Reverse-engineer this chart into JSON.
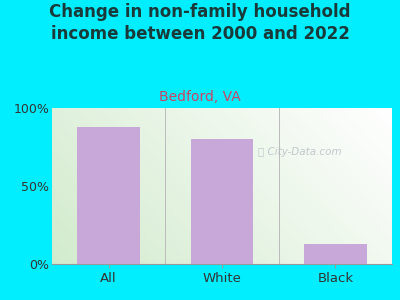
{
  "title": "Change in non-family household\nincome between 2000 and 2022",
  "subtitle": "Bedford, VA",
  "categories": [
    "All",
    "White",
    "Black"
  ],
  "values": [
    88,
    80,
    13
  ],
  "bar_color": "#C8A8D8",
  "title_color": "#1a3a3a",
  "subtitle_color": "#cc4466",
  "bg_color": "#00EEFF",
  "ylim": [
    0,
    100
  ],
  "yticks": [
    0,
    50,
    100
  ],
  "ytick_labels": [
    "0%",
    "50%",
    "100%"
  ],
  "title_fontsize": 12,
  "subtitle_fontsize": 10,
  "bar_width": 0.55,
  "watermark_text": "City-Data.com",
  "watermark_color": "#b0b8c0",
  "watermark_alpha": 0.75
}
